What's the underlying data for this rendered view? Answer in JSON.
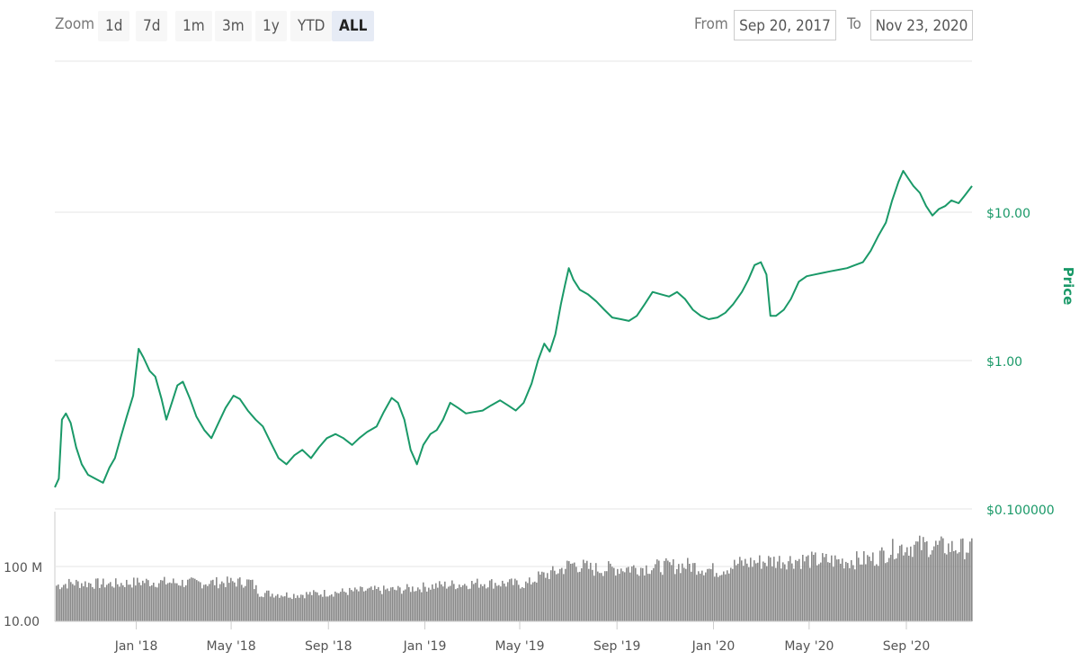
{
  "toolbar": {
    "zoom_label": "Zoom",
    "zoom_buttons": [
      "1d",
      "7d",
      "1m",
      "3m",
      "1y",
      "YTD",
      "ALL"
    ],
    "active_zoom": "ALL",
    "from_label": "From",
    "from_value": "Sep 20, 2017",
    "to_label": "To",
    "to_value": "Nov 23, 2020"
  },
  "chart_data": {
    "type": "line",
    "price_axis": {
      "title": "Price",
      "scale": "log",
      "tick_labels": [
        "$10.00",
        "$1.00",
        "$0.100000"
      ],
      "tick_values": [
        10,
        1,
        0.1
      ]
    },
    "volume_axis": {
      "scale": "log",
      "tick_labels": [
        "100 M",
        "10.00"
      ]
    },
    "x_tick_labels": [
      "Jan '18",
      "May '18",
      "Sep '18",
      "Jan '19",
      "May '19",
      "Sep '19",
      "Jan '20",
      "May '20",
      "Sep '20"
    ],
    "x_range": [
      "2017-09-20",
      "2020-11-23"
    ],
    "series": [
      {
        "color": "#1a9968",
        "points": [
          [
            "2017-09-20",
            0.14
          ],
          [
            "2017-09-25",
            0.16
          ],
          [
            "2017-09-29",
            0.4
          ],
          [
            "2017-10-04",
            0.44
          ],
          [
            "2017-10-10",
            0.38
          ],
          [
            "2017-10-17",
            0.26
          ],
          [
            "2017-10-24",
            0.2
          ],
          [
            "2017-11-01",
            0.17
          ],
          [
            "2017-11-10",
            0.16
          ],
          [
            "2017-11-20",
            0.15
          ],
          [
            "2017-11-28",
            0.19
          ],
          [
            "2017-12-05",
            0.22
          ],
          [
            "2017-12-12",
            0.3
          ],
          [
            "2017-12-20",
            0.42
          ],
          [
            "2017-12-28",
            0.58
          ],
          [
            "2018-01-04",
            1.2
          ],
          [
            "2018-01-10",
            1.05
          ],
          [
            "2018-01-18",
            0.85
          ],
          [
            "2018-01-25",
            0.78
          ],
          [
            "2018-02-02",
            0.55
          ],
          [
            "2018-02-08",
            0.4
          ],
          [
            "2018-02-15",
            0.52
          ],
          [
            "2018-02-22",
            0.68
          ],
          [
            "2018-03-01",
            0.72
          ],
          [
            "2018-03-10",
            0.55
          ],
          [
            "2018-03-18",
            0.42
          ],
          [
            "2018-03-28",
            0.34
          ],
          [
            "2018-04-06",
            0.3
          ],
          [
            "2018-04-15",
            0.38
          ],
          [
            "2018-04-24",
            0.48
          ],
          [
            "2018-05-04",
            0.58
          ],
          [
            "2018-05-12",
            0.55
          ],
          [
            "2018-05-22",
            0.46
          ],
          [
            "2018-06-01",
            0.4
          ],
          [
            "2018-06-10",
            0.36
          ],
          [
            "2018-06-20",
            0.28
          ],
          [
            "2018-06-30",
            0.22
          ],
          [
            "2018-07-10",
            0.2
          ],
          [
            "2018-07-20",
            0.23
          ],
          [
            "2018-07-30",
            0.25
          ],
          [
            "2018-08-10",
            0.22
          ],
          [
            "2018-08-20",
            0.26
          ],
          [
            "2018-08-30",
            0.3
          ],
          [
            "2018-09-10",
            0.32
          ],
          [
            "2018-09-20",
            0.3
          ],
          [
            "2018-10-01",
            0.27
          ],
          [
            "2018-10-10",
            0.3
          ],
          [
            "2018-10-20",
            0.33
          ],
          [
            "2018-11-01",
            0.36
          ],
          [
            "2018-11-10",
            0.45
          ],
          [
            "2018-11-20",
            0.56
          ],
          [
            "2018-11-28",
            0.52
          ],
          [
            "2018-12-06",
            0.4
          ],
          [
            "2018-12-14",
            0.25
          ],
          [
            "2018-12-22",
            0.2
          ],
          [
            "2018-12-30",
            0.27
          ],
          [
            "2019-01-08",
            0.32
          ],
          [
            "2019-01-16",
            0.34
          ],
          [
            "2019-01-24",
            0.4
          ],
          [
            "2019-02-02",
            0.52
          ],
          [
            "2019-02-12",
            0.48
          ],
          [
            "2019-02-22",
            0.44
          ],
          [
            "2019-03-04",
            0.45
          ],
          [
            "2019-03-15",
            0.46
          ],
          [
            "2019-03-26",
            0.5
          ],
          [
            "2019-04-06",
            0.54
          ],
          [
            "2019-04-16",
            0.5
          ],
          [
            "2019-04-26",
            0.46
          ],
          [
            "2019-05-06",
            0.52
          ],
          [
            "2019-05-16",
            0.7
          ],
          [
            "2019-05-24",
            1.0
          ],
          [
            "2019-06-01",
            1.3
          ],
          [
            "2019-06-08",
            1.15
          ],
          [
            "2019-06-15",
            1.5
          ],
          [
            "2019-06-22",
            2.4
          ],
          [
            "2019-06-27",
            3.2
          ],
          [
            "2019-07-02",
            4.2
          ],
          [
            "2019-07-08",
            3.5
          ],
          [
            "2019-07-16",
            3.0
          ],
          [
            "2019-07-26",
            2.8
          ],
          [
            "2019-08-06",
            2.5
          ],
          [
            "2019-08-16",
            2.2
          ],
          [
            "2019-08-26",
            1.95
          ],
          [
            "2019-09-06",
            1.9
          ],
          [
            "2019-09-16",
            1.85
          ],
          [
            "2019-09-26",
            2.0
          ],
          [
            "2019-10-06",
            2.4
          ],
          [
            "2019-10-16",
            2.9
          ],
          [
            "2019-10-26",
            2.8
          ],
          [
            "2019-11-06",
            2.7
          ],
          [
            "2019-11-16",
            2.9
          ],
          [
            "2019-11-26",
            2.6
          ],
          [
            "2019-12-06",
            2.2
          ],
          [
            "2019-12-16",
            2.0
          ],
          [
            "2019-12-26",
            1.9
          ],
          [
            "2020-01-06",
            1.95
          ],
          [
            "2020-01-16",
            2.1
          ],
          [
            "2020-01-26",
            2.4
          ],
          [
            "2020-02-06",
            2.9
          ],
          [
            "2020-02-14",
            3.5
          ],
          [
            "2020-02-22",
            4.4
          ],
          [
            "2020-03-01",
            4.6
          ],
          [
            "2020-03-08",
            3.8
          ],
          [
            "2020-03-13",
            2.0
          ],
          [
            "2020-03-20",
            2.0
          ],
          [
            "2020-03-30",
            2.2
          ],
          [
            "2020-04-08",
            2.6
          ],
          [
            "2020-04-18",
            3.4
          ],
          [
            "2020-04-28",
            3.7
          ],
          [
            "2020-05-08",
            3.8
          ],
          [
            "2020-05-18",
            3.9
          ],
          [
            "2020-05-28",
            4.0
          ],
          [
            "2020-06-08",
            4.1
          ],
          [
            "2020-06-18",
            4.2
          ],
          [
            "2020-06-28",
            4.4
          ],
          [
            "2020-07-08",
            4.6
          ],
          [
            "2020-07-18",
            5.5
          ],
          [
            "2020-07-28",
            7.0
          ],
          [
            "2020-08-06",
            8.5
          ],
          [
            "2020-08-14",
            12.0
          ],
          [
            "2020-08-22",
            16.0
          ],
          [
            "2020-08-28",
            19.0
          ],
          [
            "2020-09-03",
            17.0
          ],
          [
            "2020-09-10",
            15.0
          ],
          [
            "2020-09-18",
            13.5
          ],
          [
            "2020-09-26",
            11.0
          ],
          [
            "2020-10-04",
            9.5
          ],
          [
            "2020-10-12",
            10.5
          ],
          [
            "2020-10-20",
            11.0
          ],
          [
            "2020-10-28",
            12.0
          ],
          [
            "2020-11-06",
            11.5
          ],
          [
            "2020-11-14",
            13.0
          ],
          [
            "2020-11-23",
            15.0
          ]
        ]
      }
    ],
    "volume_levels": [
      [
        "2017-09-20",
        0.65
      ],
      [
        "2017-10-10",
        0.7
      ],
      [
        "2017-12-01",
        0.68
      ],
      [
        "2018-01-10",
        0.72
      ],
      [
        "2018-03-15",
        0.7
      ],
      [
        "2018-05-25",
        0.72
      ],
      [
        "2018-06-05",
        0.52
      ],
      [
        "2018-07-15",
        0.48
      ],
      [
        "2018-09-01",
        0.52
      ],
      [
        "2018-10-15",
        0.56
      ],
      [
        "2018-12-01",
        0.58
      ],
      [
        "2019-01-15",
        0.65
      ],
      [
        "2019-03-15",
        0.7
      ],
      [
        "2019-05-10",
        0.68
      ],
      [
        "2019-05-25",
        0.82
      ],
      [
        "2019-06-15",
        0.9
      ],
      [
        "2019-07-05",
        1.05
      ],
      [
        "2019-08-01",
        0.95
      ],
      [
        "2019-10-01",
        0.98
      ],
      [
        "2019-12-01",
        1.02
      ],
      [
        "2020-01-05",
        0.92
      ],
      [
        "2020-02-01",
        1.05
      ],
      [
        "2020-03-10",
        1.1
      ],
      [
        "2020-04-15",
        1.12
      ],
      [
        "2020-06-15",
        1.1
      ],
      [
        "2020-07-20",
        1.14
      ],
      [
        "2020-08-20",
        1.35
      ],
      [
        "2020-09-20",
        1.38
      ],
      [
        "2020-11-23",
        1.32
      ]
    ],
    "grid": true,
    "legend": "none"
  }
}
